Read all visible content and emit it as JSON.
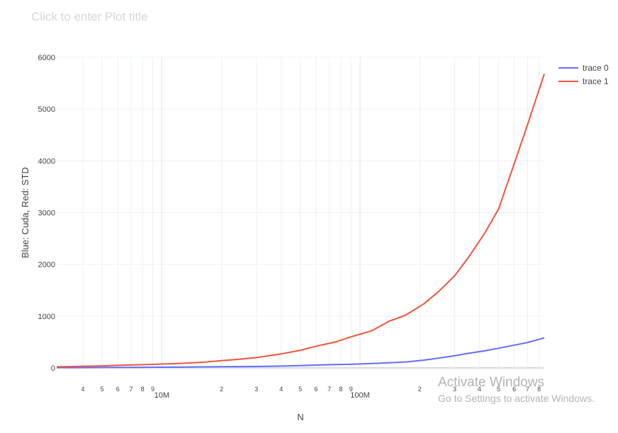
{
  "page": {
    "title_placeholder": "Click to enter Plot title"
  },
  "watermark": {
    "line1": "Activate Windows",
    "line2": "Go to Settings to activate Windows."
  },
  "chart_data": {
    "type": "line",
    "xlabel": "N",
    "ylabel": "Blue: Cuda, Red: STD",
    "x_scale": "log",
    "xlim": [
      2950000,
      850000000
    ],
    "ylim": [
      -50,
      6000
    ],
    "grid": true,
    "legend_position": "top-right",
    "y_ticks": [
      0,
      1000,
      2000,
      3000,
      4000,
      5000,
      6000
    ],
    "x_major_ticks": [
      {
        "value": 10000000,
        "label": "10M"
      },
      {
        "value": 100000000,
        "label": "100M"
      }
    ],
    "x_minor_ticks": [
      {
        "value": 4000000,
        "label": "4"
      },
      {
        "value": 5000000,
        "label": "5"
      },
      {
        "value": 6000000,
        "label": "6"
      },
      {
        "value": 7000000,
        "label": "7"
      },
      {
        "value": 8000000,
        "label": "8"
      },
      {
        "value": 9000000,
        "label": "9"
      },
      {
        "value": 20000000,
        "label": "2"
      },
      {
        "value": 30000000,
        "label": "3"
      },
      {
        "value": 40000000,
        "label": "4"
      },
      {
        "value": 50000000,
        "label": "5"
      },
      {
        "value": 60000000,
        "label": "6"
      },
      {
        "value": 70000000,
        "label": "7"
      },
      {
        "value": 80000000,
        "label": "8"
      },
      {
        "value": 90000000,
        "label": "9"
      },
      {
        "value": 200000000,
        "label": "2"
      },
      {
        "value": 300000000,
        "label": "3"
      },
      {
        "value": 400000000,
        "label": "4"
      },
      {
        "value": 500000000,
        "label": "5"
      },
      {
        "value": 600000000,
        "label": "6"
      },
      {
        "value": 700000000,
        "label": "7"
      },
      {
        "value": 800000000,
        "label": "8"
      }
    ],
    "x": [
      2950000,
      3900000,
      5000000,
      6500000,
      8500000,
      10000000,
      13000000,
      16000000,
      20000000,
      25000000,
      30000000,
      40000000,
      50000000,
      60000000,
      75000000,
      90000000,
      115000000,
      140000000,
      170000000,
      210000000,
      250000000,
      300000000,
      350000000,
      425000000,
      500000000,
      600000000,
      700000000,
      850000000
    ],
    "series": [
      {
        "name": "trace 0",
        "color": "#636efa",
        "values": [
          5,
          6,
          8,
          10,
          12,
          14,
          17,
          20,
          23,
          26,
          28,
          35,
          45,
          55,
          65,
          70,
          85,
          100,
          115,
          150,
          190,
          235,
          280,
          330,
          380,
          440,
          490,
          580
        ]
      },
      {
        "name": "trace 1",
        "color": "#ef553b",
        "values": [
          20,
          30,
          40,
          55,
          65,
          75,
          90,
          110,
          140,
          170,
          200,
          270,
          340,
          420,
          500,
          600,
          720,
          900,
          1020,
          1240,
          1480,
          1780,
          2120,
          2600,
          3070,
          3950,
          4700,
          5680
        ]
      }
    ]
  }
}
